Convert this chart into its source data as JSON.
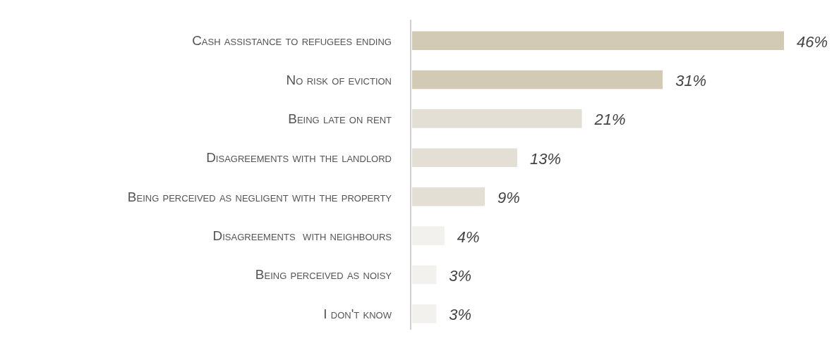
{
  "chart_data": {
    "type": "bar",
    "orientation": "horizontal",
    "categories": [
      "Cash assistance to refugees ending",
      "No risk of eviction",
      "Being late on rent",
      "Disagreements with the landlord",
      "Being perceived as negligent with the property",
      "Disagreements  with neighbours",
      "Being perceived as noisy",
      "I don't know"
    ],
    "values": [
      46,
      31,
      21,
      13,
      9,
      4,
      3,
      3
    ],
    "colors": [
      "#d3cab5",
      "#d3cab5",
      "#e3dfd4",
      "#e3dfd4",
      "#e3dfd4",
      "#f2f1ed",
      "#f2f1ed",
      "#f2f1ed"
    ],
    "value_labels": [
      "46%",
      "31%",
      "21%",
      "13%",
      "9%",
      "4%",
      "3%",
      "3%"
    ]
  }
}
